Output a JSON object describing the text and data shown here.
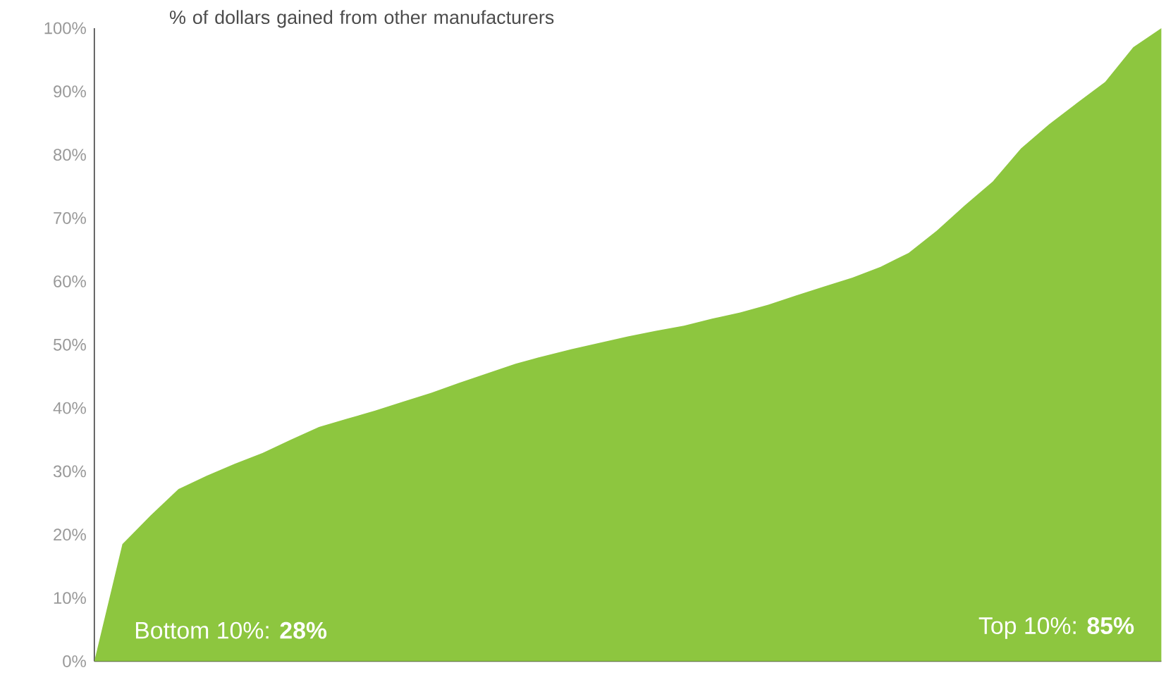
{
  "chart_data": {
    "type": "area",
    "title": "% of dollars gained from other manufacturers",
    "categories": [
      null,
      null,
      null,
      null,
      null,
      null,
      null,
      null,
      null,
      null,
      null,
      null,
      null,
      null,
      null,
      null,
      null,
      null,
      null,
      null,
      null,
      null,
      null,
      null,
      null,
      null,
      null,
      null,
      null,
      null,
      null,
      null,
      null,
      null,
      null,
      null,
      null,
      null,
      null
    ],
    "values": [
      0,
      18.5,
      23,
      27.2,
      29.3,
      31.2,
      32.9,
      35,
      37,
      38.3,
      39.6,
      41,
      42.4,
      44,
      45.5,
      47,
      48.2,
      49.3,
      50.3,
      51.3,
      52.2,
      53,
      54.1,
      55.1,
      56.3,
      57.8,
      59.2,
      60.6,
      62.3,
      64.5,
      68,
      72,
      75.8,
      81,
      84.8,
      88.2,
      91.5,
      97,
      100
    ],
    "color": "#8dc63f",
    "ylim": [
      0,
      100
    ],
    "yticks": [
      {
        "value": 0,
        "label": "0%"
      },
      {
        "value": 10,
        "label": "10%"
      },
      {
        "value": 20,
        "label": "20%"
      },
      {
        "value": 30,
        "label": "30%"
      },
      {
        "value": 40,
        "label": "40%"
      },
      {
        "value": 50,
        "label": "50%"
      },
      {
        "value": 60,
        "label": "60%"
      },
      {
        "value": 70,
        "label": "70%"
      },
      {
        "value": 80,
        "label": "80%"
      },
      {
        "value": 90,
        "label": "90%"
      },
      {
        "value": 100,
        "label": "100%"
      }
    ],
    "tick_labels": "y",
    "annotations": [
      "Bottom 10%: **28%**",
      "Top 10%: **85%**"
    ]
  }
}
